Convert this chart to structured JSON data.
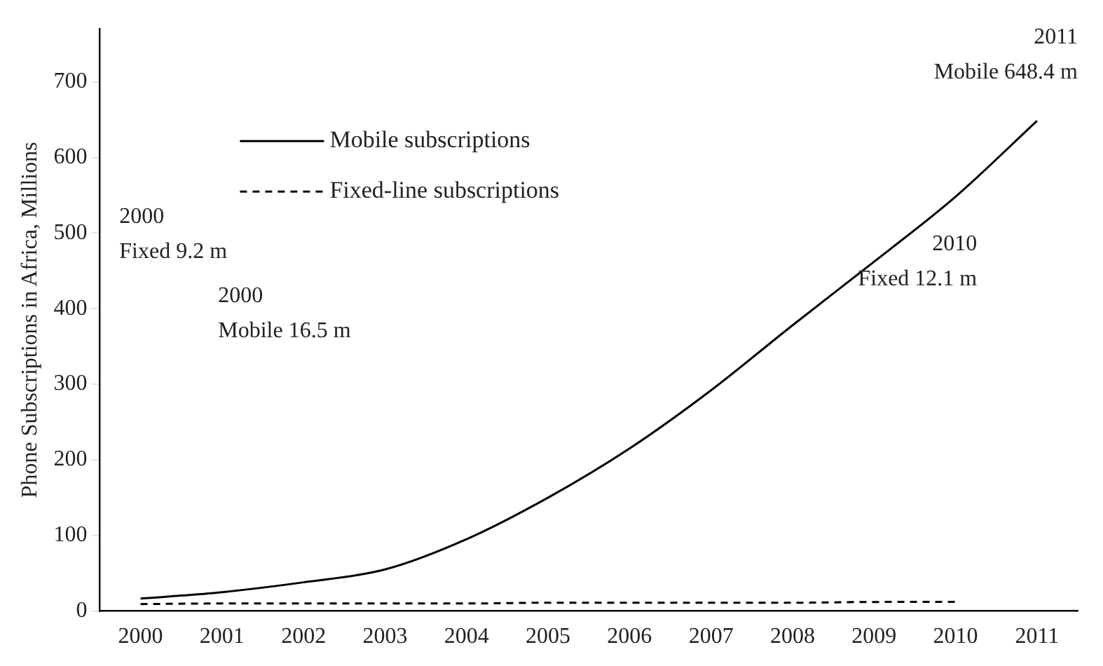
{
  "chart_data": {
    "type": "line",
    "ylabel": "Phone Subscriptions in Africa, Millions",
    "categories": [
      "2000",
      "2001",
      "2002",
      "2003",
      "2004",
      "2005",
      "2006",
      "2007",
      "2008",
      "2009",
      "2010",
      "2011"
    ],
    "series": [
      {
        "name": "Mobile subscriptions",
        "color": "#000000",
        "line_style": "solid",
        "values": [
          16.5,
          25,
          38,
          55,
          95,
          150,
          215,
          292,
          378,
          462,
          548,
          648.4
        ]
      },
      {
        "name": "Fixed-line subscriptions",
        "color": "#000000",
        "line_style": "dashed",
        "values": [
          9.2,
          10,
          10,
          10,
          10,
          11,
          11,
          11,
          11,
          12,
          12.1,
          null
        ]
      }
    ],
    "ylim": [
      0,
      770
    ],
    "yticks": [
      0,
      100,
      200,
      300,
      400,
      500,
      600,
      700
    ],
    "grid": false,
    "legend": "top left",
    "marker": "none",
    "annotations": [
      "2011\nMobile 648.4 m",
      "2000\nMobile 16.5 m",
      "2000\nFixed 9.2 m",
      "2010\nFixed 12.1 m"
    ]
  }
}
